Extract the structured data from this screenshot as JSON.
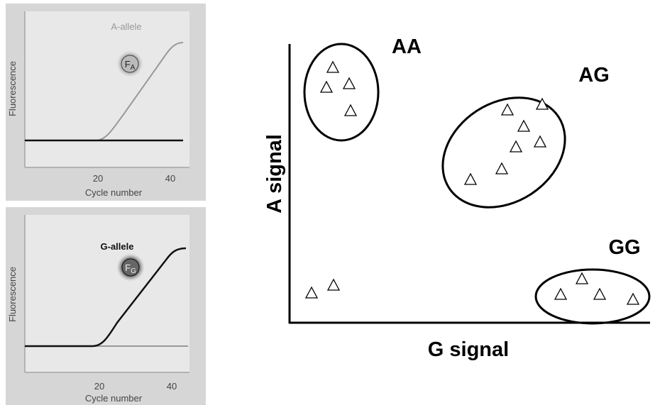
{
  "panels": [
    {
      "allele_label": "A-allele",
      "probe": {
        "symbol": "F",
        "subscript": "A"
      },
      "y_label": "Fluorescence",
      "x_label": "Cycle number",
      "x_ticks": [
        "20",
        "40"
      ]
    },
    {
      "allele_label": "G-allele",
      "probe": {
        "symbol": "F",
        "subscript": "G"
      },
      "y_label": "Fluorescence",
      "x_label": "Cycle number",
      "x_ticks": [
        "20",
        "40"
      ]
    }
  ],
  "scatter": {
    "y_label": "A signal",
    "x_label": "G signal",
    "clusters": [
      "AA",
      "AG",
      "GG"
    ]
  }
}
